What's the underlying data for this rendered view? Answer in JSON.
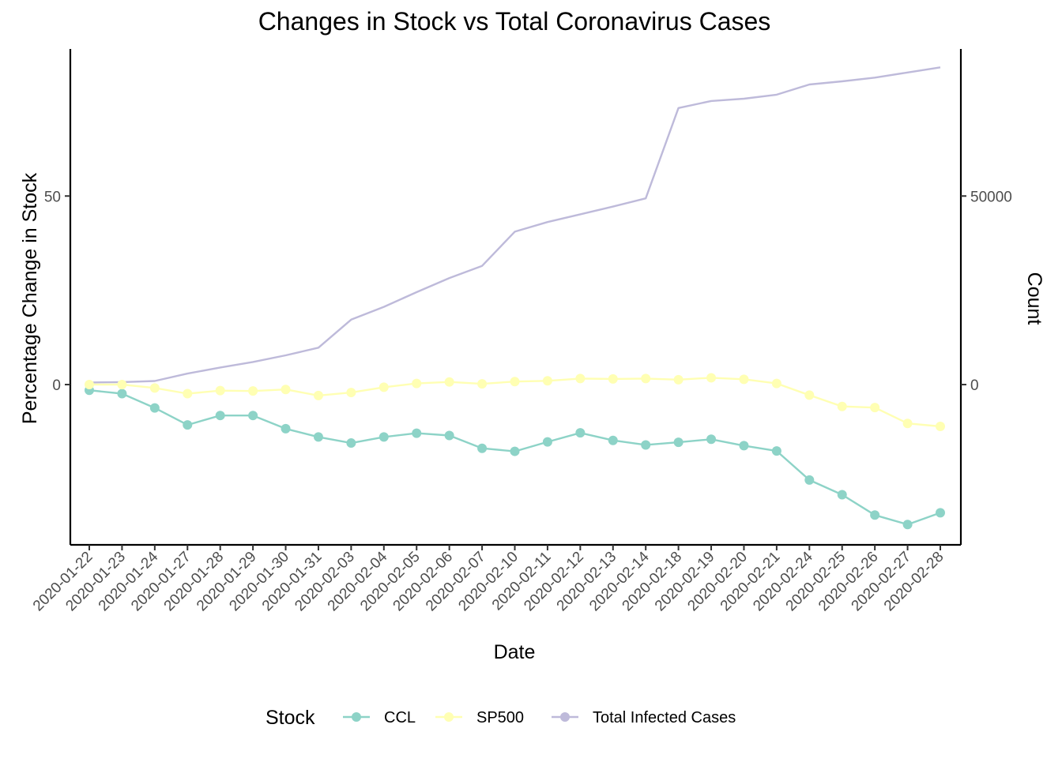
{
  "chart_data": {
    "type": "line",
    "title": "Changes in Stock vs Total Coronavirus Cases",
    "xlabel": "Date",
    "ylabel": "Percentage Change in Stock",
    "y2label": "Count",
    "categories": [
      "2020-01-22",
      "2020-01-23",
      "2020-01-24",
      "2020-01-27",
      "2020-01-28",
      "2020-01-29",
      "2020-01-30",
      "2020-01-31",
      "2020-02-03",
      "2020-02-04",
      "2020-02-05",
      "2020-02-06",
      "2020-02-07",
      "2020-02-10",
      "2020-02-11",
      "2020-02-12",
      "2020-02-13",
      "2020-02-14",
      "2020-02-18",
      "2020-02-19",
      "2020-02-20",
      "2020-02-21",
      "2020-02-24",
      "2020-02-25",
      "2020-02-26",
      "2020-02-27",
      "2020-02-28"
    ],
    "ylim": [
      -42.5,
      89
    ],
    "y_ticks": [
      0,
      50
    ],
    "y2lim": [
      -42500,
      89000
    ],
    "y2_ticks": [
      0,
      50000
    ],
    "legend_title": "Stock",
    "legend_position": "bottom",
    "grid": false,
    "series": [
      {
        "name": "CCL",
        "axis": "left",
        "color": "#8dd3c7",
        "markers": true,
        "values": [
          -1.5,
          -2.4,
          -6.2,
          -10.7,
          -8.2,
          -8.2,
          -11.7,
          -13.9,
          -15.5,
          -13.9,
          -12.9,
          -13.5,
          -16.9,
          -17.7,
          -15.2,
          -12.8,
          -14.8,
          -16.0,
          -15.3,
          -14.5,
          -16.2,
          -17.6,
          -25.3,
          -29.2,
          -34.6,
          -37.1,
          -34.0
        ]
      },
      {
        "name": "SP500",
        "axis": "left",
        "color": "#ffffb3",
        "markers": true,
        "values": [
          0.0,
          0.0,
          -0.9,
          -2.4,
          -1.6,
          -1.7,
          -1.3,
          -2.9,
          -2.1,
          -0.7,
          0.3,
          0.7,
          0.2,
          0.8,
          1.0,
          1.6,
          1.5,
          1.6,
          1.3,
          1.8,
          1.4,
          0.3,
          -2.8,
          -5.8,
          -6.1,
          -10.3,
          -11.1
        ]
      },
      {
        "name": "Total Infected Cases",
        "axis": "right",
        "color": "#bebada",
        "markers": false,
        "values": [
          555,
          653,
          941,
          2927,
          4537,
          5987,
          7761,
          9795,
          17210,
          20620,
          24508,
          28246,
          31473,
          40540,
          43098,
          45153,
          47206,
          49373,
          73337,
          75205,
          75815,
          76879,
          79570,
          80420,
          81393,
          82758,
          84120
        ]
      }
    ]
  }
}
